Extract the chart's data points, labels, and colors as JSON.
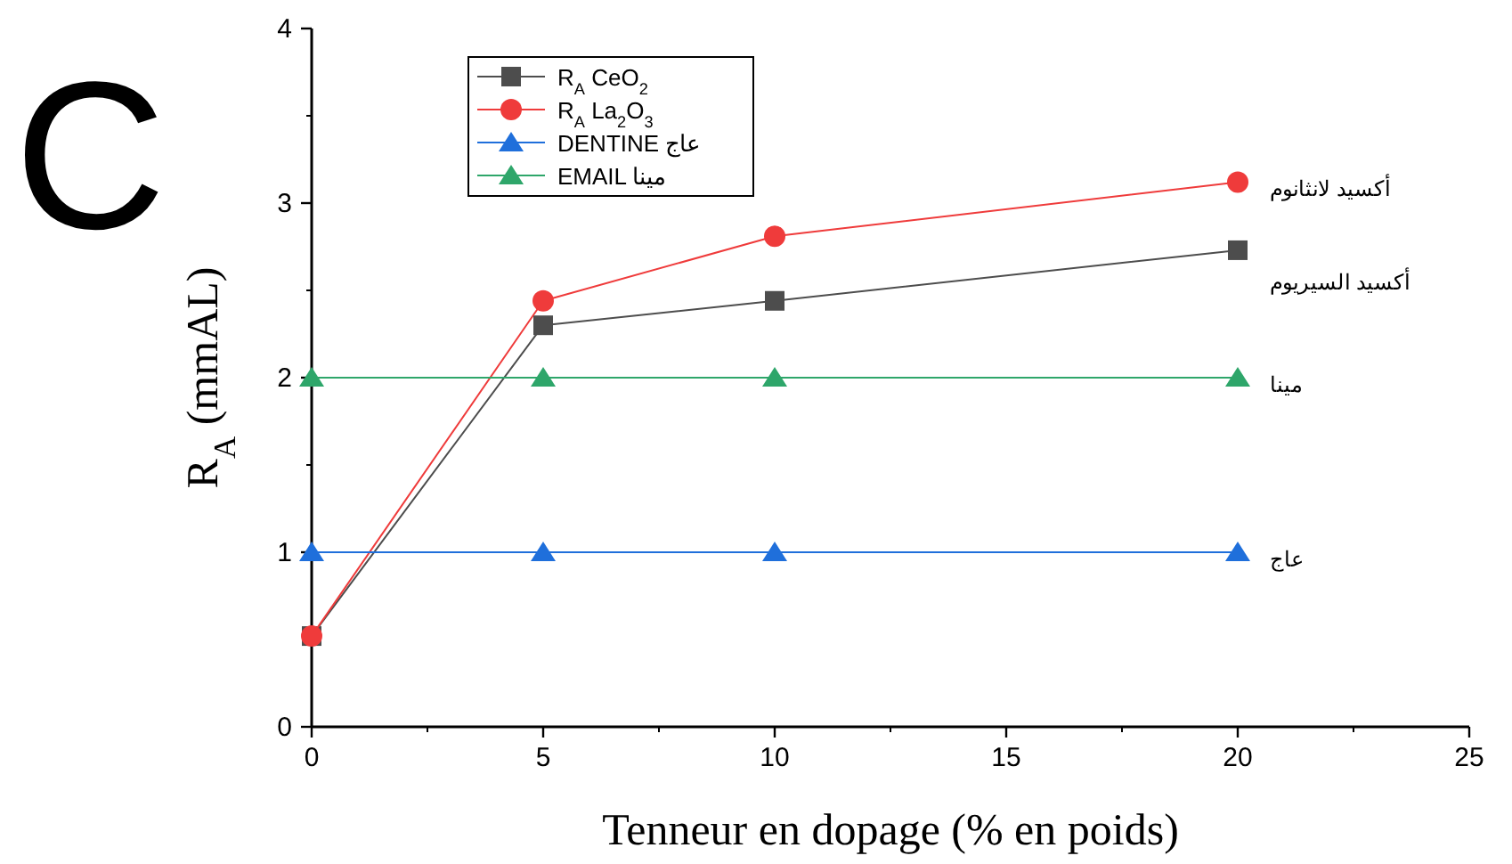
{
  "chart_data": {
    "type": "line",
    "xlabel": "Tenneur en dopage (% en poids)",
    "ylabel": "R$_{A}$ (mmAL)",
    "x": [
      0,
      5,
      10,
      20
    ],
    "series": [
      {
        "name": "R$_{A}$ CeO$_{2}$",
        "color": "#4d4d4d",
        "marker": "square",
        "values": [
          0.52,
          2.3,
          2.44,
          2.73
        ]
      },
      {
        "name": "R$_{A}$ La$_{2}$O$_{3}$",
        "color": "#ef3b3b",
        "marker": "circle",
        "values": [
          0.52,
          2.44,
          2.81,
          3.12
        ]
      },
      {
        "name": "DENTINE عاج",
        "color": "#1f6fdb",
        "marker": "triangle",
        "values": [
          1,
          1,
          1,
          1
        ]
      },
      {
        "name": "EMAIL مينا",
        "color": "#2ea66a",
        "marker": "triangle",
        "values": [
          2,
          2,
          2,
          2
        ]
      }
    ],
    "xlim": [
      0,
      25
    ],
    "xticks": [
      0,
      5,
      10,
      15,
      20,
      25
    ],
    "ylim": [
      0,
      4
    ],
    "yticks": [
      0,
      1,
      2,
      3,
      4
    ],
    "grid": false,
    "legend": "top left",
    "line_style": "solid",
    "annotations": [
      "C",
      "أكسيد السيريوم",
      "أكسيد لانثانوم",
      "عاج",
      "مينا"
    ]
  }
}
